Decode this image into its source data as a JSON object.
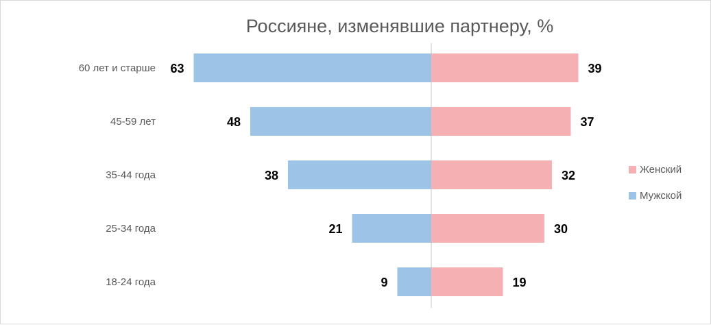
{
  "chart_data": {
    "type": "bar",
    "orientation": "horizontal-diverging",
    "title": "Россияне, изменявшие партнеру, %",
    "categories": [
      "60 лет и старше",
      "45-59 лет",
      "35-44 года",
      "25-34 года",
      "18-24 года"
    ],
    "series": [
      {
        "name": "Мужской",
        "values": [
          63,
          48,
          38,
          21,
          9
        ],
        "color": "#9dc3e6",
        "side": "left"
      },
      {
        "name": "Женский",
        "values": [
          39,
          37,
          32,
          30,
          19
        ],
        "color": "#f4b0b3",
        "side": "right"
      }
    ],
    "legend": {
      "position": "right",
      "order": [
        "Женский",
        "Мужской"
      ]
    },
    "grid": false
  }
}
